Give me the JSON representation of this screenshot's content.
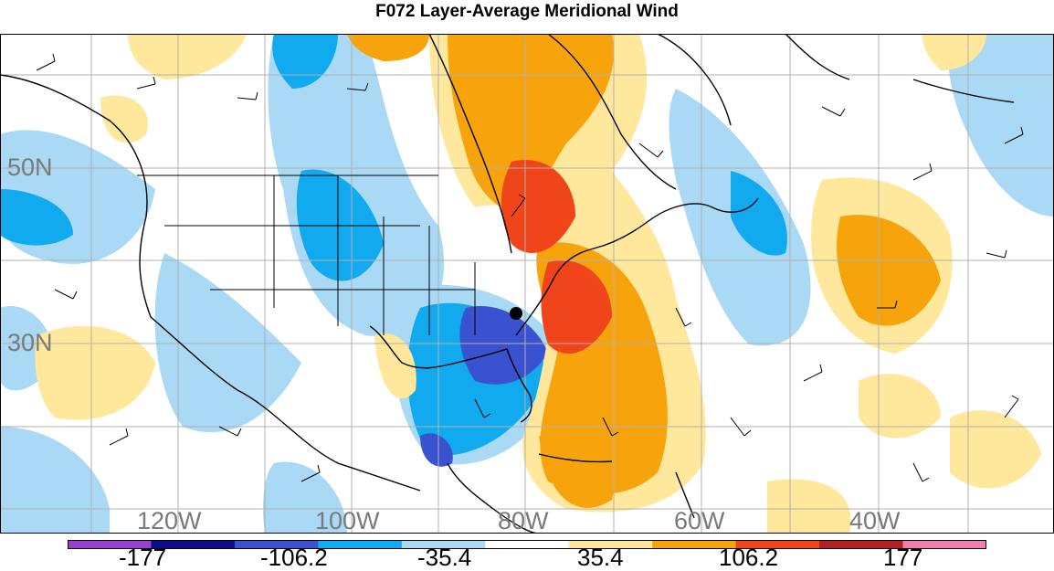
{
  "title": "F072 Layer-Average Meridional Wind",
  "map": {
    "lat_labels": [
      "50N",
      "30N"
    ],
    "lon_labels": [
      "120W",
      "100W",
      "80W",
      "60W",
      "40W"
    ],
    "station_marker": "black-dot-marker",
    "wind_barb_icon": "wind-barb-icon"
  },
  "colorbar": {
    "labels": [
      "-177",
      "-106.2",
      "-35.4",
      "35.4",
      "106.2",
      "177"
    ],
    "colors": [
      "#9a3fcf",
      "#0c0c8a",
      "#3a52d0",
      "#11aaee",
      "#a9d9f5",
      "#ffffff",
      "#ffe79c",
      "#f7a30c",
      "#f0451a",
      "#b22222",
      "#f07eb0"
    ]
  }
}
